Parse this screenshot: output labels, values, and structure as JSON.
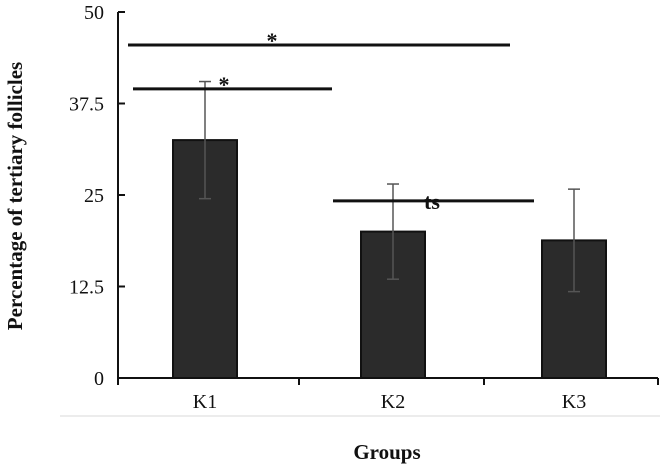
{
  "chart_data": {
    "type": "bar",
    "categories": [
      "K1",
      "K2",
      "K3"
    ],
    "values": [
      32.5,
      20.0,
      18.8
    ],
    "error": [
      8.0,
      6.5,
      7.0
    ],
    "xlabel": "Groups",
    "ylabel": "Percentage of tertiary follicles",
    "ylim": [
      0,
      50
    ],
    "yticks": [
      0,
      12.5,
      25,
      37.5,
      50
    ],
    "ytick_labels": [
      "0",
      "12.5",
      "25",
      "37.5",
      "50"
    ],
    "grid": false,
    "legend": "none",
    "bar_color": "#2b2b2b",
    "annotations": [
      {
        "from": "K1",
        "to": "K2",
        "y": 39.5,
        "label": "*"
      },
      {
        "from": "K1",
        "to": "K3",
        "y": 45.5,
        "label": "*"
      },
      {
        "from": "K2",
        "to": "K3",
        "y": 24.2,
        "label": "ts"
      }
    ]
  }
}
